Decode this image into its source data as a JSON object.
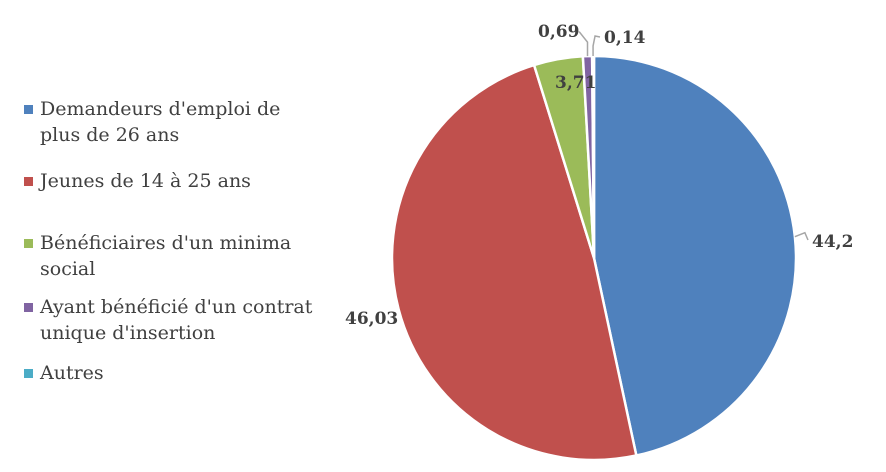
{
  "chart_data": {
    "type": "pie",
    "title": "",
    "start_angle_deg": 0,
    "direction": "clockwise",
    "legend_position": "left",
    "slices": [
      {
        "label": "Demandeurs d'emploi de plus de 26 ans",
        "value": 44.2,
        "display": "44,2",
        "color": "#4F81BD"
      },
      {
        "label": "Jeunes de 14 à 25 ans",
        "value": 46.03,
        "display": "46,03",
        "color": "#C0504D"
      },
      {
        "label": "Bénéficiaires d'un minima social",
        "value": 3.71,
        "display": "3,71",
        "color": "#9BBB59"
      },
      {
        "label": "Ayant bénéficié d'un contrat unique d'insertion",
        "value": 0.69,
        "display": "0,69",
        "color": "#8064A2"
      },
      {
        "label": "Autres",
        "value": 0.14,
        "display": "0,14",
        "color": "#4BACC6"
      }
    ]
  }
}
